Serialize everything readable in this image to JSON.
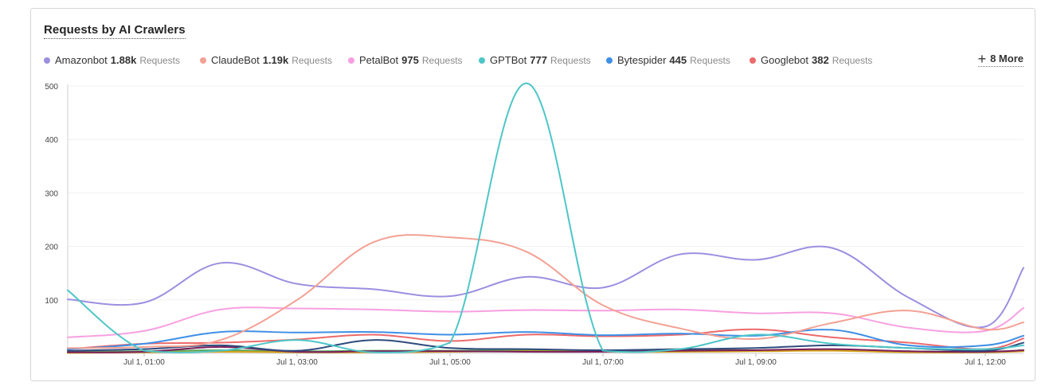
{
  "chart_title": "Requests by AI Crawlers",
  "more_label": "8 More",
  "legend": [
    {
      "name": "Amazonbot",
      "value": "1.88k",
      "unit": "Requests",
      "color": "#9c8fe0"
    },
    {
      "name": "ClaudeBot",
      "value": "1.19k",
      "unit": "Requests",
      "color": "#f3a194"
    },
    {
      "name": "PetalBot",
      "value": "975",
      "unit": "Requests",
      "color": "#f7a0e0"
    },
    {
      "name": "GPTBot",
      "value": "777",
      "unit": "Requests",
      "color": "#4ec6c8"
    },
    {
      "name": "Bytespider",
      "value": "445",
      "unit": "Requests",
      "color": "#3f8fe6"
    },
    {
      "name": "Googlebot",
      "value": "382",
      "unit": "Requests",
      "color": "#ec6a6a"
    }
  ],
  "chart_data": {
    "type": "line",
    "title": "Requests by AI Crawlers",
    "x": [
      "Jul 1, 00:00",
      "Jul 1, 01:00",
      "Jul 1, 02:00",
      "Jul 1, 03:00",
      "Jul 1, 04:00",
      "Jul 1, 05:00",
      "Jul 1, 06:00",
      "Jul 1, 07:00",
      "Jul 1, 08:00",
      "Jul 1, 09:00",
      "Jul 1, 10:00",
      "Jul 1, 11:00",
      "Jul 1, 12:00",
      "Jul 1, 12:30"
    ],
    "x_ticks": [
      "Jul 1, 01:00",
      "Jul 1, 03:00",
      "Jul 1, 05:00",
      "Jul 1, 07:00",
      "Jul 1, 09:00",
      "Jul 1, 12:00"
    ],
    "y_ticks": [
      100,
      200,
      300,
      400,
      500
    ],
    "ylim": [
      0,
      500
    ],
    "grid": true,
    "series": [
      {
        "name": "Amazonbot",
        "color": "#9c8fe0",
        "values": [
          101,
          95,
          169,
          130,
          120,
          107,
          143,
          123,
          185,
          175,
          197,
          104,
          50,
          160
        ]
      },
      {
        "name": "ClaudeBot",
        "color": "#f3a194",
        "values": [
          10,
          12,
          25,
          100,
          208,
          217,
          190,
          90,
          47,
          27,
          57,
          80,
          45,
          58
        ]
      },
      {
        "name": "PetalBot",
        "color": "#f7a0e0",
        "values": [
          30,
          42,
          82,
          84,
          82,
          78,
          81,
          80,
          82,
          75,
          75,
          48,
          42,
          85
        ]
      },
      {
        "name": "GPTBot",
        "color": "#4ec6c8",
        "values": [
          118,
          5,
          5,
          25,
          2,
          20,
          505,
          5,
          8,
          35,
          18,
          10,
          8,
          15
        ]
      },
      {
        "name": "Bytespider",
        "color": "#3f8fe6",
        "values": [
          8,
          18,
          40,
          39,
          40,
          35,
          40,
          34,
          37,
          33,
          44,
          15,
          15,
          33
        ]
      },
      {
        "name": "Googlebot",
        "color": "#ec6a6a",
        "values": [
          8,
          18,
          20,
          26,
          35,
          23,
          35,
          32,
          35,
          45,
          30,
          20,
          8,
          28
        ]
      },
      {
        "name": "",
        "color": "#2f4b7c",
        "values": [
          5,
          8,
          15,
          5,
          25,
          10,
          8,
          6,
          8,
          10,
          15,
          10,
          5,
          20
        ]
      },
      {
        "name": "",
        "color": "#7a1e5c",
        "values": [
          2,
          3,
          12,
          3,
          4,
          4,
          3,
          3,
          5,
          6,
          8,
          4,
          3,
          6
        ]
      },
      {
        "name": "",
        "color": "#d4a017",
        "values": [
          1,
          2,
          3,
          2,
          2,
          3,
          4,
          3,
          3,
          4,
          5,
          2,
          2,
          4
        ]
      },
      {
        "name": "",
        "color": "#5aa65a",
        "values": [
          3,
          4,
          6,
          4,
          5,
          5,
          6,
          5,
          7,
          6,
          6,
          4,
          3,
          6
        ]
      }
    ]
  }
}
